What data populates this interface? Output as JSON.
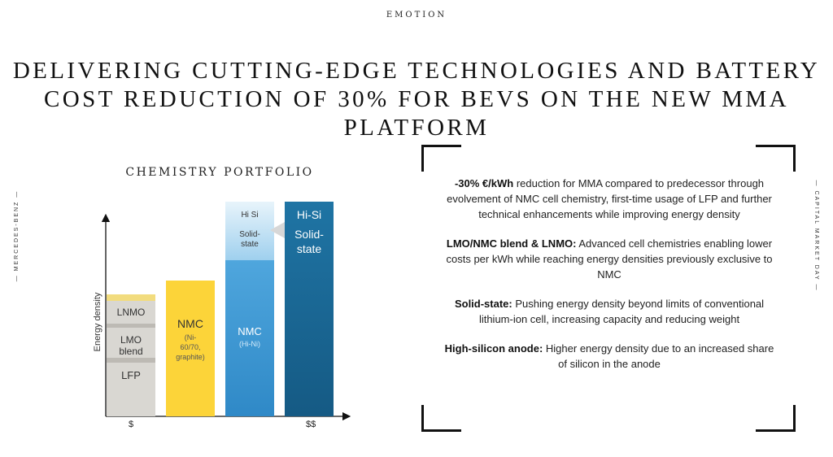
{
  "header": {
    "label": "EMOTION"
  },
  "headline": {
    "line1": "DELIVERING CUTTING-EDGE TECHNOLOGIES AND BATTERY",
    "line2": "COST REDUCTION OF 30% FOR BEVS ON THE NEW MMA PLATFORM"
  },
  "side": {
    "left": "— MERCEDES-BENZ —",
    "right": "— CAPITAL MARKET DAY —"
  },
  "chart": {
    "title": "CHEMISTRY PORTFOLIO",
    "ylabel": "Energy density",
    "xlabel_low": "$",
    "xlabel_high": "$$",
    "bar1": {
      "top": "LNMO",
      "mid1": "LMO",
      "mid2": "blend",
      "bottom": "LFP"
    },
    "bar2": {
      "title": "NMC",
      "sub1": "(Ni-",
      "sub2": "60/70,",
      "sub3": "graphite)"
    },
    "bar3": {
      "title": "NMC",
      "sub": "(Hi-Ni)",
      "ext1": "Hi Si",
      "ext2": "Solid-",
      "ext3": "state"
    },
    "bar4": {
      "line1": "Hi-Si",
      "line2": "Solid-",
      "line3": "state"
    },
    "colors": {
      "grey": "#d9d7d2",
      "yellow": "#fcd439",
      "blue_light": "#3f9ad6",
      "blue_dark": "#1d6b98",
      "blue_pale": "#bfe0f3"
    }
  },
  "bullets": [
    {
      "bold": "-30% €/kWh",
      "text": " reduction for MMA compared to predecessor through evolvement of NMC cell chemistry, first-time usage of LFP and further technical enhancements while improving energy density"
    },
    {
      "bold": "LMO/NMC blend & LNMO:",
      "text": " Advanced cell chemistries enabling lower costs per kWh while reaching energy densities previously exclusive to NMC"
    },
    {
      "bold": "Solid-state:",
      "text": " Pushing energy density beyond limits of conventional lithium-ion cell, increasing capacity and reducing weight"
    },
    {
      "bold": "High-silicon anode:",
      "text": " Higher energy density due to an increased share of silicon in the anode"
    }
  ]
}
